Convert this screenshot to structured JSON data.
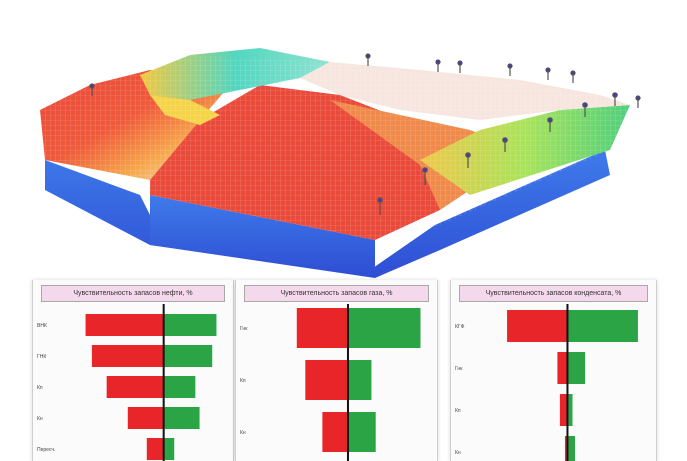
{
  "colors": {
    "negative": "#e8262a",
    "positive": "#2aa444",
    "axis": "#111111",
    "title_bg": "#f4d9ec"
  },
  "model_3d": {
    "icon": "reservoir-3d-model-image"
  },
  "chart_data": [
    {
      "type": "bar",
      "orientation": "horizontal",
      "title": "Чувствительность запасов нефти, %",
      "categories": [
        "ВНК",
        "ГНК",
        "Кп",
        "Кн",
        "Пересч."
      ],
      "series": [
        {
          "values": [
            -37,
            -34,
            -27,
            -17,
            -8
          ]
        },
        {
          "values": [
            25,
            23,
            15,
            17,
            5
          ]
        }
      ],
      "xlim": [
        -42,
        30
      ]
    },
    {
      "type": "bar",
      "orientation": "horizontal",
      "title": "Чувствительность запасов газа, %",
      "categories": [
        "Гнк",
        "Кп",
        "Кн"
      ],
      "series": [
        {
          "values": [
            -24,
            -20,
            -12
          ]
        },
        {
          "values": [
            34,
            11,
            13
          ]
        }
      ],
      "xlim": [
        -30,
        38
      ]
    },
    {
      "type": "bar",
      "orientation": "horizontal",
      "title": "Чувствительность запасов конденсата, %",
      "categories": [
        "КГФ",
        "Гнк",
        "Кп",
        "Кн"
      ],
      "series": [
        {
          "values": [
            -24,
            -4,
            -3,
            -1
          ]
        },
        {
          "values": [
            28,
            7,
            2,
            3
          ]
        }
      ],
      "xlim": [
        -28,
        32
      ]
    }
  ]
}
